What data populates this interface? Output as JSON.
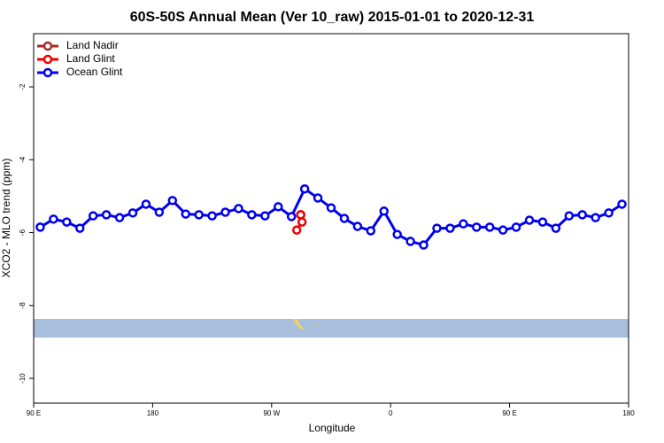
{
  "chart_data": {
    "type": "line",
    "title": "60S-50S Annual Mean (Ver 10_raw)   2015-01-01 to 2020-12-31",
    "xlabel": "Longitude",
    "ylabel": "XCO2 - MLO trend (ppm)",
    "xlim": [
      90,
      540
    ],
    "ylim": [
      -10.68,
      -0.54
    ],
    "xticks": [
      {
        "value": 90,
        "label": "90 E"
      },
      180,
      {
        "value": 270,
        "label": "90 W"
      },
      {
        "value": 360,
        "label": "0"
      },
      {
        "value": 450,
        "label": "90 E"
      },
      {
        "value": 540,
        "label": "180"
      }
    ],
    "yticks": [
      -2,
      -4,
      -6,
      -8,
      -10
    ],
    "grid": false,
    "legend": "upper left",
    "series": [
      {
        "name": "Land Nadir",
        "color": "#a52a2a",
        "x": [
          292
        ],
        "values": [
          -5.51
        ]
      },
      {
        "name": "Land Glint",
        "color": "#ee0000",
        "x": [
          289,
          293,
          292
        ],
        "values": [
          -5.93,
          -5.71,
          -5.51
        ]
      },
      {
        "name": "Ocean Glint",
        "color": "#0000ee",
        "x": [
          95,
          105,
          115,
          125,
          135,
          145,
          155,
          165,
          175,
          185,
          195,
          205,
          215,
          225,
          235,
          245,
          255,
          265,
          275,
          285,
          295,
          305,
          315,
          325,
          335,
          345,
          355,
          365,
          375,
          385,
          395,
          405,
          415,
          425,
          435,
          445,
          455,
          465,
          475,
          485,
          495,
          505,
          515,
          525,
          535
        ],
        "values": [
          -5.85,
          -5.63,
          -5.71,
          -5.88,
          -5.54,
          -5.51,
          -5.59,
          -5.46,
          -5.22,
          -5.44,
          -5.12,
          -5.49,
          -5.51,
          -5.54,
          -5.44,
          -5.34,
          -5.51,
          -5.54,
          -5.29,
          -5.56,
          -4.8,
          -5.05,
          -5.32,
          -5.61,
          -5.83,
          -5.95,
          -5.41,
          -6.05,
          -6.24,
          -6.34,
          -5.88,
          -5.88,
          -5.76,
          -5.85,
          -5.85,
          -5.93,
          -5.85,
          -5.66,
          -5.71,
          -5.88,
          -5.54,
          -5.51,
          -5.59,
          -5.46,
          -5.22
        ]
      }
    ]
  }
}
